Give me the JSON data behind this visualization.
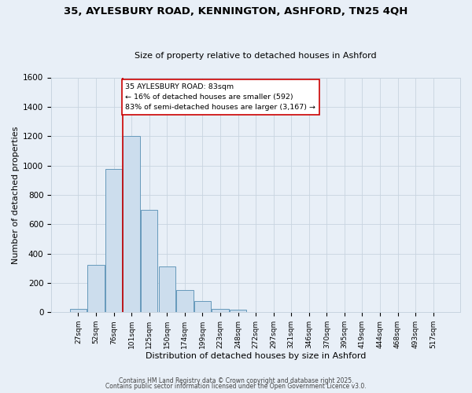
{
  "title1": "35, AYLESBURY ROAD, KENNINGTON, ASHFORD, TN25 4QH",
  "title2": "Size of property relative to detached houses in Ashford",
  "xlabel": "Distribution of detached houses by size in Ashford",
  "ylabel": "Number of detached properties",
  "bar_labels": [
    "27sqm",
    "52sqm",
    "76sqm",
    "101sqm",
    "125sqm",
    "150sqm",
    "174sqm",
    "199sqm",
    "223sqm",
    "248sqm",
    "272sqm",
    "297sqm",
    "321sqm",
    "346sqm",
    "370sqm",
    "395sqm",
    "419sqm",
    "444sqm",
    "468sqm",
    "493sqm",
    "517sqm"
  ],
  "bar_values": [
    25,
    325,
    975,
    1200,
    700,
    310,
    150,
    75,
    25,
    15,
    2,
    0,
    0,
    2,
    0,
    1,
    0,
    0,
    0,
    0,
    2
  ],
  "bar_color": "#ccdded",
  "bar_edge_color": "#6699bb",
  "vline_color": "#cc0000",
  "annotation_title": "35 AYLESBURY ROAD: 83sqm",
  "annotation_line2": "← 16% of detached houses are smaller (592)",
  "annotation_line3": "83% of semi-detached houses are larger (3,167) →",
  "annotation_box_edge": "#cc0000",
  "annotation_box_bg": "white",
  "ylim": [
    0,
    1600
  ],
  "yticks": [
    0,
    200,
    400,
    600,
    800,
    1000,
    1200,
    1400,
    1600
  ],
  "footer1": "Contains HM Land Registry data © Crown copyright and database right 2025.",
  "footer2": "Contains public sector information licensed under the Open Government Licence v3.0.",
  "bg_color": "#e8eff7",
  "grid_color": "#c8d4e0"
}
